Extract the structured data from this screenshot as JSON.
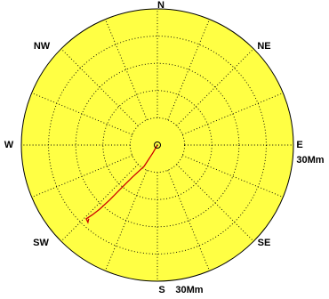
{
  "chart_data": {
    "type": "polar",
    "directions": {
      "n": "N",
      "ne": "NE",
      "e": "E",
      "se": "SE",
      "s": "S",
      "sw": "SW",
      "w": "W",
      "nw": "NW"
    },
    "scale_labels": {
      "east": "30Mm",
      "south": "30Mm"
    },
    "radius_max": 30,
    "ring_count": 5,
    "spoke_count": 16,
    "grid": true,
    "colors": {
      "background": "#ffff44",
      "grid": "#000000",
      "track": "#cc0000"
    },
    "track": {
      "unit": "Mm",
      "points": [
        {
          "bearing": 0,
          "range": 0.0
        },
        {
          "bearing": 210,
          "range": 2.0
        },
        {
          "bearing": 212,
          "range": 5.5
        },
        {
          "bearing": 218,
          "range": 9.0
        },
        {
          "bearing": 220,
          "range": 12.5
        },
        {
          "bearing": 221,
          "range": 16.0
        },
        {
          "bearing": 222,
          "range": 19.0
        },
        {
          "bearing": 223,
          "range": 21.0
        },
        {
          "bearing": 224,
          "range": 22.6
        },
        {
          "bearing": 222,
          "range": 22.9
        },
        {
          "bearing": 223,
          "range": 22.2
        }
      ]
    }
  }
}
